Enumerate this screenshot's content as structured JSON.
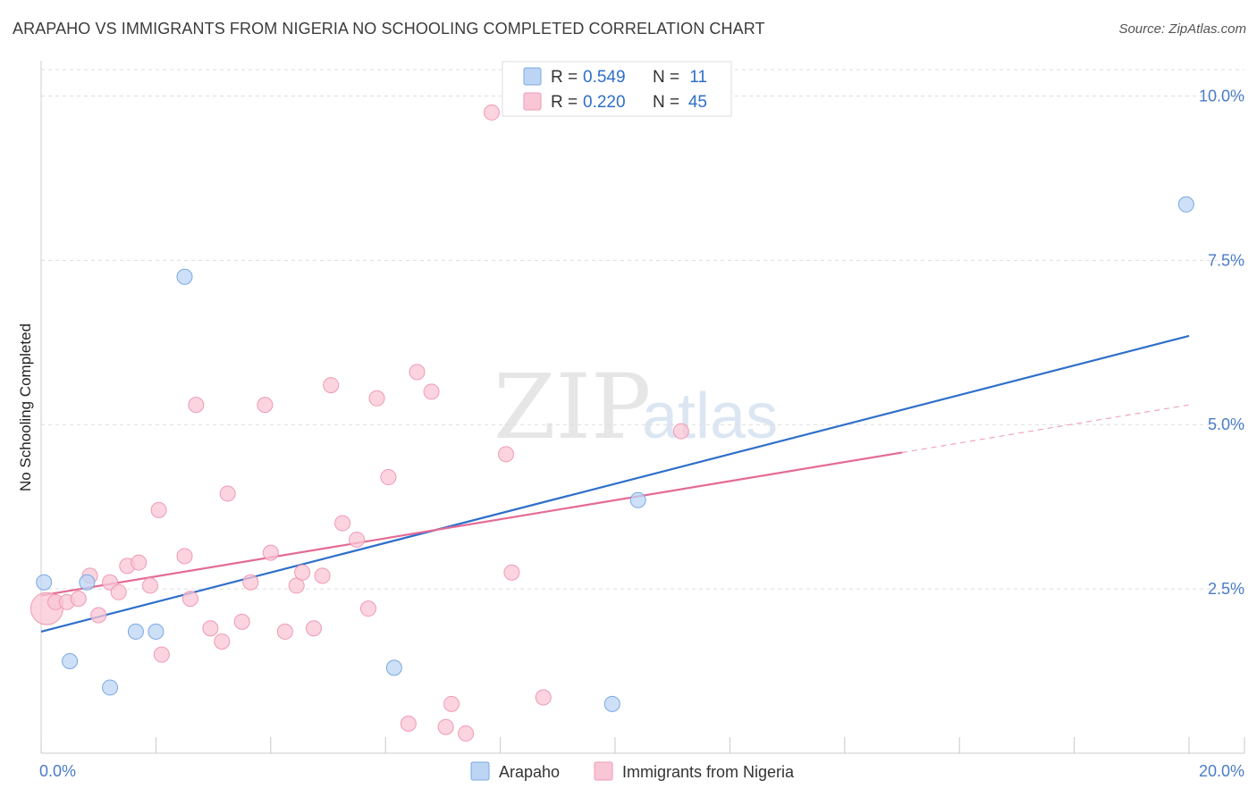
{
  "header": {
    "title": "ARAPAHO VS IMMIGRANTS FROM NIGERIA NO SCHOOLING COMPLETED CORRELATION CHART",
    "source": "Source: ZipAtlas.com"
  },
  "watermark": {
    "zip": "ZIP",
    "atlas": "atlas"
  },
  "legend_top": {
    "rows": [
      {
        "r_label": "R =",
        "r_value": "0.549",
        "n_label": "N =",
        "n_value": "11"
      },
      {
        "r_label": "R =",
        "r_value": "0.220",
        "n_label": "N =",
        "n_value": "45"
      }
    ]
  },
  "legend_bottom": [
    "Arapaho",
    "Immigrants from Nigeria"
  ],
  "colors": {
    "blue_fill": "#bcd5f5",
    "blue_stroke": "#7aa8e0",
    "blue_line": "#2f6fca",
    "pink_fill": "#f9c6d6",
    "pink_stroke": "#ef9ab4",
    "pink_line": "#e46a94",
    "tick_text": "#4a7cc7",
    "grid": "#dddddd"
  },
  "chart_data": {
    "type": "scatter",
    "title": "ARAPAHO VS IMMIGRANTS FROM NIGERIA NO SCHOOLING COMPLETED CORRELATION CHART",
    "xlabel": "",
    "ylabel": "No Schooling Completed",
    "xlim": [
      0,
      20
    ],
    "ylim": [
      0,
      10.4
    ],
    "x_tick_labels": [
      "0.0%",
      "20.0%"
    ],
    "y_ticks": [
      2.5,
      5.0,
      7.5,
      10.0
    ],
    "y_tick_labels": [
      "2.5%",
      "5.0%",
      "7.5%",
      "10.0%"
    ],
    "grid": "horizontal-dashed",
    "series": [
      {
        "name": "Arapaho",
        "R": 0.549,
        "N": 11,
        "points": [
          [
            0.05,
            2.6
          ],
          [
            0.8,
            2.6
          ],
          [
            0.5,
            1.4
          ],
          [
            1.2,
            1.0
          ],
          [
            1.65,
            1.85
          ],
          [
            2.0,
            1.85
          ],
          [
            2.5,
            7.25
          ],
          [
            6.15,
            1.3
          ],
          [
            10.4,
            3.85
          ],
          [
            9.95,
            0.75
          ],
          [
            19.95,
            8.35
          ]
        ],
        "trend": {
          "x": [
            0,
            20
          ],
          "y": [
            1.85,
            6.35
          ],
          "dashed_from": null
        }
      },
      {
        "name": "Immigrants from Nigeria",
        "R": 0.22,
        "N": 45,
        "points": [
          [
            0.1,
            2.2
          ],
          [
            0.25,
            2.3
          ],
          [
            0.45,
            2.3
          ],
          [
            0.65,
            2.35
          ],
          [
            1.0,
            2.1
          ],
          [
            0.85,
            2.7
          ],
          [
            1.2,
            2.6
          ],
          [
            1.35,
            2.45
          ],
          [
            1.5,
            2.85
          ],
          [
            1.7,
            2.9
          ],
          [
            1.9,
            2.55
          ],
          [
            2.1,
            1.5
          ],
          [
            2.05,
            3.7
          ],
          [
            2.5,
            3.0
          ],
          [
            2.6,
            2.35
          ],
          [
            2.7,
            5.3
          ],
          [
            2.95,
            1.9
          ],
          [
            3.15,
            1.7
          ],
          [
            3.25,
            3.95
          ],
          [
            3.5,
            2.0
          ],
          [
            3.65,
            2.6
          ],
          [
            3.9,
            5.3
          ],
          [
            4.0,
            3.05
          ],
          [
            4.25,
            1.85
          ],
          [
            4.45,
            2.55
          ],
          [
            4.55,
            2.75
          ],
          [
            4.75,
            1.9
          ],
          [
            4.9,
            2.7
          ],
          [
            5.05,
            5.6
          ],
          [
            5.25,
            3.5
          ],
          [
            5.5,
            3.25
          ],
          [
            5.7,
            2.2
          ],
          [
            5.85,
            5.4
          ],
          [
            6.05,
            4.2
          ],
          [
            6.4,
            0.45
          ],
          [
            6.55,
            5.8
          ],
          [
            6.8,
            5.5
          ],
          [
            7.05,
            0.4
          ],
          [
            7.15,
            0.75
          ],
          [
            7.4,
            0.3
          ],
          [
            7.85,
            9.75
          ],
          [
            8.1,
            4.55
          ],
          [
            8.2,
            2.75
          ],
          [
            8.75,
            0.85
          ],
          [
            11.15,
            4.9
          ]
        ],
        "trend": {
          "x": [
            0,
            20
          ],
          "y": [
            2.4,
            5.3
          ],
          "dashed_from": 15
        }
      }
    ]
  }
}
